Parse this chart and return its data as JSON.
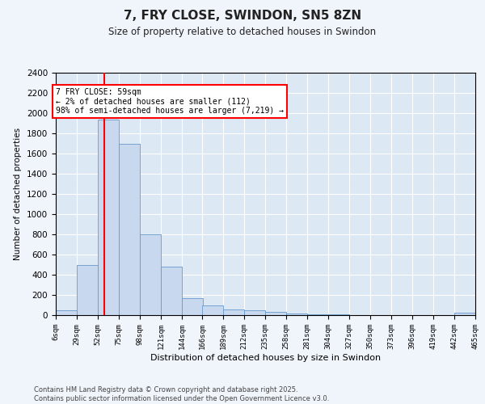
{
  "title": "7, FRY CLOSE, SWINDON, SN5 8ZN",
  "subtitle": "Size of property relative to detached houses in Swindon",
  "xlabel": "Distribution of detached houses by size in Swindon",
  "ylabel": "Number of detached properties",
  "bar_color": "#c8d8ee",
  "bar_edge_color": "#6699cc",
  "background_color": "#dde8f5",
  "fig_background": "#f0f4fb",
  "grid_color": "#ffffff",
  "annotation_text": "7 FRY CLOSE: 59sqm\n← 2% of detached houses are smaller (112)\n98% of semi-detached houses are larger (7,219) →",
  "red_line_x": 59,
  "footer": "Contains HM Land Registry data © Crown copyright and database right 2025.\nContains public sector information licensed under the Open Government Licence v3.0.",
  "bin_edges": [
    6,
    29,
    52,
    75,
    98,
    121,
    144,
    166,
    189,
    212,
    235,
    258,
    281,
    304,
    327,
    350,
    373,
    396,
    419,
    442,
    465
  ],
  "bin_labels": [
    "6sqm",
    "29sqm",
    "52sqm",
    "75sqm",
    "98sqm",
    "121sqm",
    "144sqm",
    "166sqm",
    "189sqm",
    "212sqm",
    "235sqm",
    "258sqm",
    "281sqm",
    "304sqm",
    "327sqm",
    "350sqm",
    "373sqm",
    "396sqm",
    "419sqm",
    "442sqm",
    "465sqm"
  ],
  "bar_heights": [
    50,
    500,
    1940,
    1700,
    800,
    480,
    170,
    100,
    55,
    45,
    35,
    20,
    10,
    5,
    4,
    3,
    0,
    0,
    0,
    22
  ],
  "ylim": [
    0,
    2400
  ],
  "yticks": [
    0,
    200,
    400,
    600,
    800,
    1000,
    1200,
    1400,
    1600,
    1800,
    2000,
    2200,
    2400
  ]
}
